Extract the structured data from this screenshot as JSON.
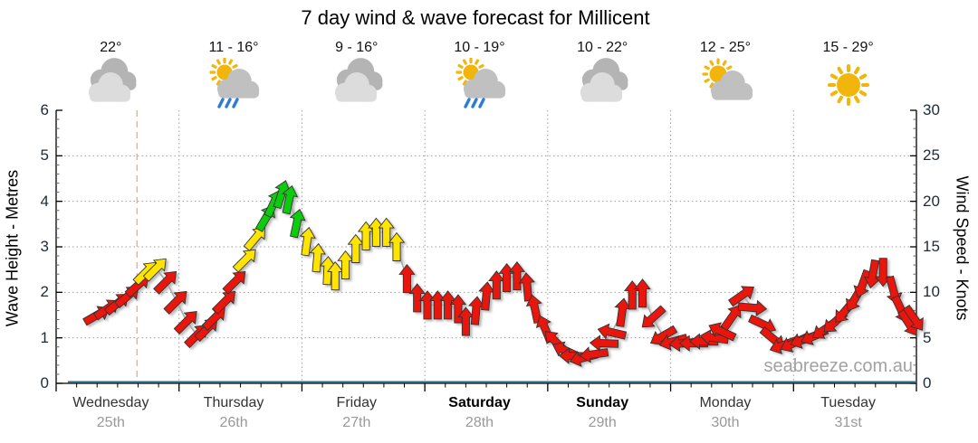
{
  "title": "7 day wind & wave forecast for Millicent",
  "watermark": "seabreeze.com.au",
  "days": [
    {
      "name": "Wednesday",
      "date": "25th",
      "temp": "22°",
      "icon": "cloudy",
      "weekend": false
    },
    {
      "name": "Thursday",
      "date": "26th",
      "temp": "11 - 16°",
      "icon": "sun-cloud-rain",
      "weekend": false
    },
    {
      "name": "Friday",
      "date": "27th",
      "temp": "9 - 16°",
      "icon": "cloudy",
      "weekend": false
    },
    {
      "name": "Saturday",
      "date": "28th",
      "temp": "10 - 19°",
      "icon": "sun-cloud-rain",
      "weekend": true
    },
    {
      "name": "Sunday",
      "date": "29th",
      "temp": "10 - 22°",
      "icon": "cloudy",
      "weekend": true
    },
    {
      "name": "Monday",
      "date": "30th",
      "temp": "12 - 25°",
      "icon": "sun-cloud",
      "weekend": false
    },
    {
      "name": "Tuesday",
      "date": "31st",
      "temp": "15 - 29°",
      "icon": "sunny",
      "weekend": false
    }
  ],
  "axes": {
    "left": {
      "title": "Wave Height - Metres",
      "ticks": [
        0,
        1,
        2,
        3,
        4,
        5,
        6
      ],
      "range": [
        0,
        6
      ]
    },
    "right": {
      "title": "Wind Speed - Knots",
      "ticks": [
        0,
        5,
        10,
        15,
        20,
        25,
        30
      ],
      "range": [
        0,
        30
      ]
    },
    "x": {
      "days": 7,
      "hours": 168
    }
  },
  "colors": {
    "arrow_red": "#e8170c",
    "arrow_yellow": "#ffe400",
    "arrow_green": "#0ccc0c",
    "arrow_outline": "#333333",
    "grid": "#9e9e9e",
    "now_line": "#f2a6a0",
    "wind_line": "#a9a9a9",
    "wave_zero_line": "#2e6e8e",
    "axis": "#000000",
    "minor_tick": "#666666"
  },
  "now_marker_hour": 15.8,
  "chart_data": {
    "type": "line",
    "title": "7 day wind & wave forecast for Millicent",
    "x_unit": "hours from Wednesday 00:00",
    "categories": [
      "Wednesday 25th",
      "Thursday 26th",
      "Friday 27th",
      "Saturday 28th",
      "Sunday 29th",
      "Monday 30th",
      "Tuesday 31st"
    ],
    "ylabel_left": "Wave Height - Metres",
    "ylabel_right": "Wind Speed - Knots",
    "ylim_left": [
      0,
      6
    ],
    "ylim_right": [
      0,
      30
    ],
    "grid": true,
    "wave_height_line": {
      "flat_metres": 0
    },
    "wind_arrows_legend": "each arrow = [hour, knots, direction_deg_cw_from_up, color r|y|g]",
    "wind_arrows": [
      [
        8,
        7.5,
        60,
        "r"
      ],
      [
        10,
        8.2,
        55,
        "r"
      ],
      [
        12,
        8.8,
        50,
        "r"
      ],
      [
        14,
        9.6,
        50,
        "r"
      ],
      [
        16,
        10.8,
        48,
        "r"
      ],
      [
        17.5,
        12.2,
        45,
        "y"
      ],
      [
        19.5,
        12.6,
        45,
        "y"
      ],
      [
        21.5,
        11.2,
        45,
        "r"
      ],
      [
        23.5,
        9,
        45,
        "r"
      ],
      [
        25.5,
        6.8,
        45,
        "r"
      ],
      [
        27.5,
        5.3,
        45,
        "r"
      ],
      [
        29.5,
        6,
        45,
        "r"
      ],
      [
        31,
        7.2,
        45,
        "r"
      ],
      [
        33,
        9,
        45,
        "r"
      ],
      [
        35,
        11.2,
        45,
        "r"
      ],
      [
        37,
        13.6,
        45,
        "y"
      ],
      [
        39,
        16,
        40,
        "y"
      ],
      [
        41,
        18.2,
        30,
        "g"
      ],
      [
        42.5,
        19.8,
        25,
        "g"
      ],
      [
        44,
        20.8,
        18,
        "g"
      ],
      [
        45.5,
        20.2,
        12,
        "g"
      ],
      [
        47,
        17.6,
        12,
        "g"
      ],
      [
        49,
        15.6,
        8,
        "y"
      ],
      [
        51,
        13.8,
        5,
        "y"
      ],
      [
        53,
        12.4,
        3,
        "y"
      ],
      [
        54.5,
        11.8,
        0,
        "y"
      ],
      [
        56.5,
        13,
        0,
        "y"
      ],
      [
        58.5,
        14.8,
        0,
        "y"
      ],
      [
        60.5,
        16.2,
        0,
        "y"
      ],
      [
        62.5,
        16.6,
        0,
        "y"
      ],
      [
        64.5,
        16.6,
        0,
        "y"
      ],
      [
        66.5,
        15,
        0,
        "y"
      ],
      [
        68.5,
        11.5,
        0,
        "r"
      ],
      [
        70.5,
        9.4,
        0,
        "r"
      ],
      [
        72.5,
        8.6,
        0,
        "r"
      ],
      [
        74.5,
        8.6,
        0,
        "r"
      ],
      [
        76.5,
        8.6,
        0,
        "r"
      ],
      [
        78.5,
        8.2,
        0,
        "r"
      ],
      [
        80,
        6.8,
        0,
        "r"
      ],
      [
        82,
        8,
        5,
        "r"
      ],
      [
        84,
        9.6,
        5,
        "r"
      ],
      [
        86,
        10.8,
        0,
        "r"
      ],
      [
        88,
        11.6,
        0,
        "r"
      ],
      [
        90,
        11.8,
        0,
        "r"
      ],
      [
        92,
        10.6,
        355,
        "r"
      ],
      [
        93.5,
        8.2,
        348,
        "r"
      ],
      [
        95.5,
        6,
        338,
        "r"
      ],
      [
        97.5,
        4.6,
        315,
        "r"
      ],
      [
        99.5,
        3.6,
        295,
        "r"
      ],
      [
        101,
        3,
        272,
        "r"
      ],
      [
        103,
        2.8,
        255,
        "r"
      ],
      [
        105,
        3.2,
        262,
        "r"
      ],
      [
        107,
        4.4,
        272,
        "r"
      ],
      [
        108.5,
        5.6,
        283,
        "r"
      ],
      [
        110.5,
        7.8,
        8,
        "r"
      ],
      [
        112.5,
        9.7,
        0,
        "r"
      ],
      [
        114.5,
        9.9,
        0,
        "r"
      ],
      [
        116.5,
        7.2,
        228,
        "r"
      ],
      [
        118.5,
        5.2,
        240,
        "r"
      ],
      [
        120.5,
        4.6,
        255,
        "r"
      ],
      [
        122.5,
        4.4,
        265,
        "r"
      ],
      [
        124.5,
        4.4,
        270,
        "r"
      ],
      [
        126.5,
        4.6,
        270,
        "r"
      ],
      [
        128.5,
        5,
        278,
        "r"
      ],
      [
        130,
        5.7,
        295,
        "r"
      ],
      [
        132,
        7.3,
        35,
        "r"
      ],
      [
        134,
        9.7,
        55,
        "r"
      ],
      [
        136,
        8.3,
        95,
        "r"
      ],
      [
        138,
        6.5,
        115,
        "r"
      ],
      [
        140,
        4.9,
        130,
        "r"
      ],
      [
        142,
        4.2,
        250,
        "r"
      ],
      [
        144,
        4.4,
        245,
        "r"
      ],
      [
        146,
        4.8,
        250,
        "r"
      ],
      [
        148,
        5.2,
        245,
        "r"
      ],
      [
        150,
        5.9,
        235,
        "r"
      ],
      [
        152,
        6.7,
        228,
        "r"
      ],
      [
        154,
        7.9,
        220,
        "r"
      ],
      [
        156,
        9.3,
        210,
        "r"
      ],
      [
        157.5,
        10.9,
        200,
        "r"
      ],
      [
        159.5,
        12,
        190,
        "r"
      ],
      [
        161.5,
        12.2,
        180,
        "r"
      ],
      [
        163.5,
        10.2,
        165,
        "r"
      ],
      [
        165,
        8.1,
        155,
        "r"
      ],
      [
        166.5,
        6.6,
        148,
        "r"
      ],
      [
        167.6,
        7.1,
        145,
        "r"
      ]
    ]
  }
}
